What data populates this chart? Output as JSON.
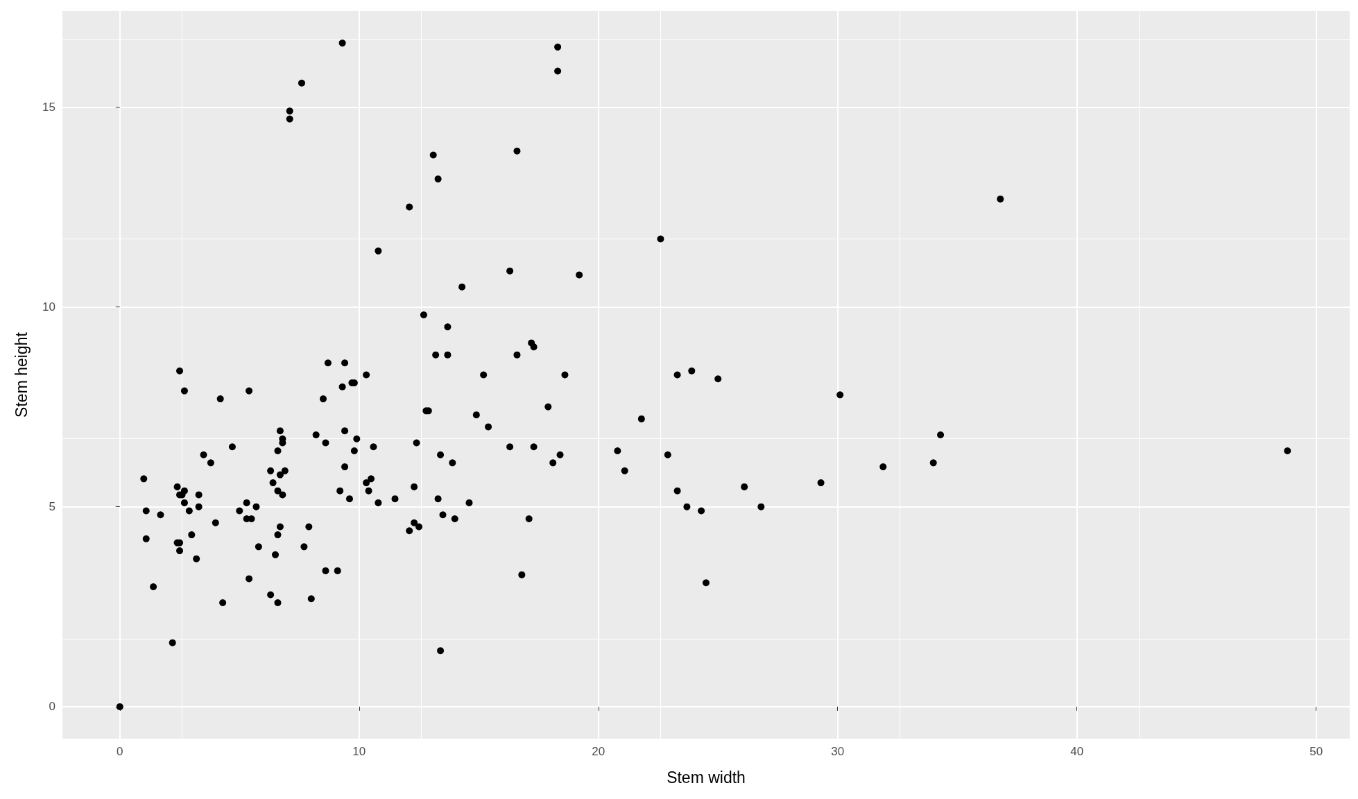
{
  "chart_data": {
    "type": "scatter",
    "xlabel": "Stem width",
    "ylabel": "Stem height",
    "color": "#000000",
    "marker": "circle",
    "grid": true,
    "xlim": [
      -2.4,
      51.4
    ],
    "ylim": [
      -0.8,
      17.4
    ],
    "xticks": [
      0,
      10,
      20,
      30,
      40,
      50
    ],
    "yticks": [
      0,
      5,
      10,
      15
    ],
    "x": [
      0,
      1.0,
      1.1,
      1.1,
      1.4,
      1.7,
      2.2,
      2.4,
      2.5,
      2.4,
      2.5,
      2.5,
      2.5,
      2.6,
      2.7,
      2.7,
      2.7,
      2.9,
      3.0,
      3.2,
      3.3,
      3.3,
      3.5,
      3.8,
      4.0,
      4.2,
      4.3,
      4.7,
      5.0,
      5.3,
      5.3,
      5.4,
      5.4,
      5.5,
      5.7,
      5.8,
      6.3,
      6.3,
      6.4,
      6.5,
      6.6,
      6.6,
      6.6,
      6.6,
      6.7,
      6.7,
      6.7,
      6.8,
      6.8,
      6.8,
      6.9,
      7.1,
      7.1,
      7.6,
      7.7,
      7.9,
      8.0,
      8.2,
      8.5,
      8.6,
      8.6,
      8.7,
      9.1,
      9.2,
      9.3,
      9.3,
      9.4,
      9.4,
      9.4,
      9.6,
      9.7,
      9.8,
      9.8,
      9.9,
      10.3,
      10.3,
      10.4,
      10.5,
      10.6,
      10.8,
      10.8,
      11.5,
      12.1,
      12.1,
      12.3,
      12.3,
      12.4,
      12.5,
      12.7,
      12.8,
      12.9,
      13.1,
      13.2,
      13.3,
      13.3,
      13.4,
      13.4,
      13.5,
      13.7,
      13.7,
      13.9,
      14.0,
      14.3,
      14.6,
      14.9,
      15.2,
      15.4,
      16.3,
      16.3,
      16.6,
      16.6,
      16.8,
      17.1,
      17.2,
      17.3,
      17.3,
      17.9,
      18.1,
      18.3,
      18.3,
      18.4,
      18.6,
      19.2,
      20.8,
      21.1,
      21.8,
      22.6,
      22.9,
      23.3,
      23.3,
      23.7,
      23.9,
      24.3,
      24.5,
      25.0,
      26.1,
      26.8,
      29.3,
      30.1,
      31.9,
      34.0,
      34.3,
      36.8,
      48.8
    ],
    "values": [
      0,
      5.7,
      4.9,
      4.2,
      3.0,
      4.8,
      1.6,
      5.5,
      8.4,
      4.1,
      3.9,
      4.1,
      5.3,
      5.3,
      5.1,
      7.9,
      5.4,
      4.9,
      4.3,
      3.7,
      5.0,
      5.3,
      6.3,
      6.1,
      4.6,
      7.7,
      2.6,
      6.5,
      4.9,
      5.1,
      4.7,
      3.2,
      7.9,
      4.7,
      5.0,
      4.0,
      2.8,
      5.9,
      5.6,
      3.8,
      6.4,
      4.3,
      5.4,
      2.6,
      4.5,
      5.8,
      6.9,
      6.7,
      6.6,
      5.3,
      5.9,
      14.9,
      14.7,
      15.6,
      4.0,
      4.5,
      2.7,
      6.8,
      7.7,
      6.6,
      3.4,
      8.6,
      3.4,
      5.4,
      8.0,
      16.6,
      6.0,
      8.6,
      6.9,
      5.2,
      8.1,
      8.1,
      6.4,
      6.7,
      8.3,
      5.6,
      5.4,
      5.7,
      6.5,
      11.4,
      5.1,
      5.2,
      4.4,
      12.5,
      4.6,
      5.5,
      6.6,
      4.5,
      9.8,
      7.4,
      7.4,
      13.8,
      8.8,
      13.2,
      5.2,
      6.3,
      1.4,
      4.8,
      8.8,
      9.5,
      6.1,
      4.7,
      10.5,
      5.1,
      7.3,
      8.3,
      7.0,
      10.9,
      6.5,
      13.9,
      8.8,
      3.3,
      4.7,
      9.1,
      9.0,
      6.5,
      7.5,
      6.1,
      15.9,
      16.5,
      6.3,
      8.3,
      10.8,
      6.4,
      5.9,
      7.2,
      11.7,
      6.3,
      8.3,
      5.4,
      5.0,
      8.4,
      4.9,
      3.1,
      8.2,
      5.5,
      5.0,
      5.6,
      7.8,
      6.0,
      6.1,
      6.8,
      12.7,
      6.4
    ]
  }
}
